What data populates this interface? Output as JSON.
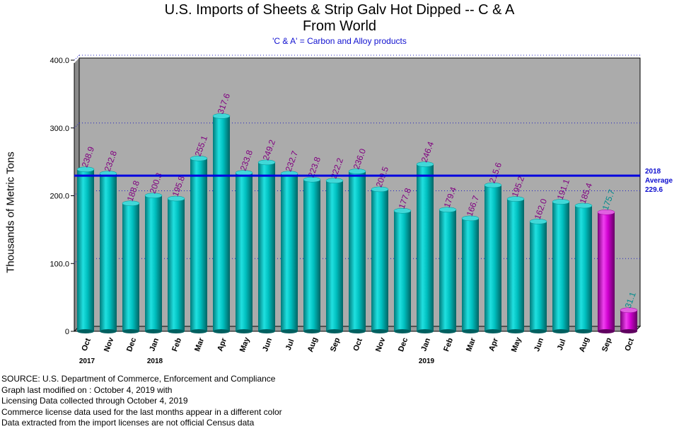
{
  "chart_data": {
    "type": "bar",
    "title": "U.S. Imports of Sheets & Strip Galv Hot Dipped -- C & A",
    "title_line2": "From World",
    "subtitle": "'C & A' = Carbon and Alloy products",
    "ylabel": "Thousands of Metric Tons",
    "ylim": [
      0,
      400
    ],
    "yticks": [
      "0",
      "100.0",
      "200.0",
      "300.0",
      "400.0"
    ],
    "yticks_values": [
      0,
      100,
      200,
      300,
      400
    ],
    "categories": [
      "Oct",
      "Nov",
      "Dec",
      "Jan",
      "Feb",
      "Mar",
      "Apr",
      "May",
      "Jun",
      "Jul",
      "Aug",
      "Sep",
      "Oct",
      "Nov",
      "Dec",
      "Jan",
      "Feb",
      "Mar",
      "Apr",
      "May",
      "Jun",
      "Jul",
      "Aug",
      "Sep",
      "Oct"
    ],
    "values": [
      238.9,
      232.8,
      188.8,
      200.3,
      195.8,
      255.1,
      317.6,
      233.8,
      249.2,
      232.7,
      223.8,
      222.2,
      236.0,
      209.5,
      177.8,
      246.4,
      179.4,
      166.7,
      215.6,
      195.2,
      162.0,
      191.1,
      185.4,
      175.7,
      31.1
    ],
    "value_labels": [
      "238.9",
      "232.8",
      "188.8",
      "200.3",
      "195.8",
      "255.1",
      "317.6",
      "233.8",
      "249.2",
      "232.7",
      "223.8",
      "222.2",
      "236.0",
      "209.5",
      "177.8",
      "246.4",
      "179.4",
      "166.7",
      "215.6",
      "195.2",
      "162.0",
      "191.1",
      "185.4",
      "175.7",
      "31.1"
    ],
    "license_data_from_index": 23,
    "year_labels": [
      {
        "index": 0,
        "label": "2017"
      },
      {
        "index": 3,
        "label": "2018"
      },
      {
        "index": 15,
        "label": "2019"
      }
    ],
    "average": {
      "line1": "2018",
      "line2": "Average",
      "line3": "229.6",
      "value": 229.6
    },
    "grid": "dotted-horizontal",
    "colors": {
      "census_bar": "#00b4b4",
      "license_bar": "#c000c0",
      "plot_background": "#ababab",
      "average_line": "#0000e0",
      "census_label": "#800080",
      "license_label": "#008c8c",
      "grid": "#2020c0"
    }
  },
  "footer": {
    "line1": "SOURCE: U.S. Department of Commerce, Enforcement and Compliance",
    "line2": "Graph last modified on : October 4, 2019    with",
    "line3": "Licensing Data collected through October 4, 2019",
    "line4": "Commerce license data used for the last months appear in a different color",
    "line5": "Data extracted from the import licenses are not official Census data"
  }
}
